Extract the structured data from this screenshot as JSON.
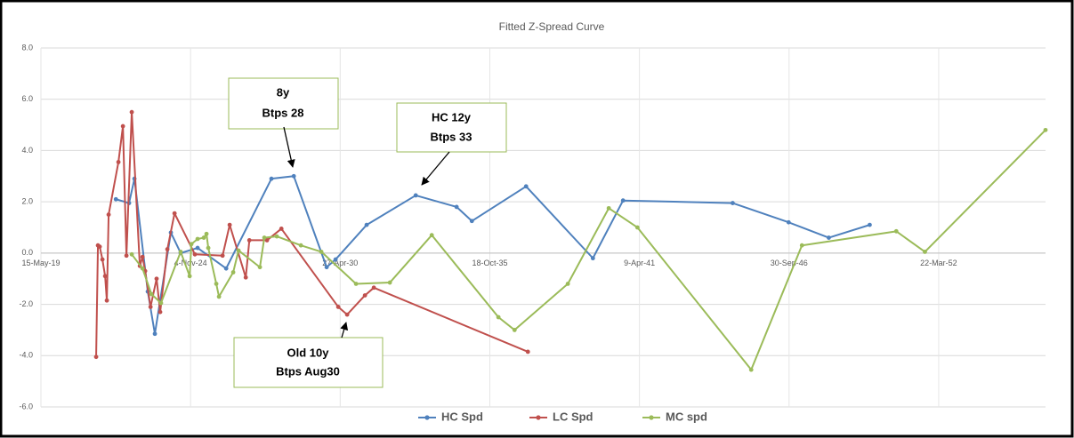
{
  "chart_data": {
    "type": "line",
    "title": "Fitted Z-Spread Curve",
    "xlim": [
      "2019-05-15",
      "2056-02-18"
    ],
    "xticks": [
      {
        "value": "2019-05-15",
        "label": "15-May-19"
      },
      {
        "value": "2024-11-04",
        "label": "4-Nov-24"
      },
      {
        "value": "2030-04-27",
        "label": "27-Apr-30"
      },
      {
        "value": "2035-10-18",
        "label": "18-Oct-35"
      },
      {
        "value": "2041-04-09",
        "label": "9-Apr-41"
      },
      {
        "value": "2046-09-30",
        "label": "30-Sep-46"
      },
      {
        "value": "2052-03-22",
        "label": "22-Mar-52"
      }
    ],
    "ylim": [
      -6,
      8
    ],
    "yticks": [
      {
        "value": 8,
        "label": "8.0"
      },
      {
        "value": 6,
        "label": "6.0"
      },
      {
        "value": 4,
        "label": "4.0"
      },
      {
        "value": 2,
        "label": "2.0"
      },
      {
        "value": 0,
        "label": "0.0"
      },
      {
        "value": -2,
        "label": "-2.0"
      },
      {
        "value": -4,
        "label": "-4.0"
      },
      {
        "value": -6,
        "label": "-6.0"
      }
    ],
    "grid": true,
    "legend": "bottom",
    "series": [
      {
        "name": "HC Spd",
        "color": "#4f81bd",
        "x": [
          "2022-02-10",
          "2022-08-05",
          "2022-10-16",
          "2023-04-12",
          "2023-07-16",
          "2024-02-15",
          "2024-06-25",
          "2025-02-06",
          "2026-02-23",
          "2027-10-21",
          "2028-08-15",
          "2029-10-28",
          "2030-02-24",
          "2031-04-16",
          "2033-01-31",
          "2034-07-31",
          "2035-02-20",
          "2037-02-14",
          "2039-07-27",
          "2040-09-02",
          "2044-09-06",
          "2046-09-24",
          "2048-03-14",
          "2049-09-12"
        ],
        "values": [
          2.1,
          1.95,
          2.9,
          -1.5,
          -3.15,
          0.8,
          0.0,
          0.2,
          -0.6,
          2.9,
          3.0,
          -0.55,
          -0.25,
          1.1,
          2.25,
          1.8,
          1.25,
          2.6,
          -0.2,
          2.05,
          1.95,
          1.2,
          0.6,
          1.1
        ]
      },
      {
        "name": "LC Spd",
        "color": "#c0504d",
        "x": [
          "2021-05-22",
          "2021-06-15",
          "2021-07-09",
          "2021-08-14",
          "2021-09-19",
          "2021-10-12",
          "2021-11-05",
          "2022-03-16",
          "2022-05-15",
          "2022-07-01",
          "2022-09-10",
          "2022-12-27",
          "2023-02-01",
          "2023-03-08",
          "2023-05-19",
          "2023-08-08",
          "2023-09-25",
          "2023-12-30",
          "2024-04-04",
          "2025-01-01",
          "2026-01-06",
          "2026-04-11",
          "2026-11-12",
          "2026-12-30",
          "2027-08-23",
          "2028-03-02",
          "2030-04-01",
          "2030-07-29",
          "2031-03-24",
          "2031-07-21",
          "2037-03-10"
        ],
        "values": [
          -4.05,
          0.3,
          0.25,
          -0.25,
          -0.9,
          -1.85,
          1.5,
          3.55,
          4.95,
          -0.1,
          5.5,
          -0.5,
          -0.15,
          -0.7,
          -2.1,
          -1.0,
          -2.3,
          0.15,
          1.55,
          -0.05,
          -0.1,
          1.1,
          -0.95,
          0.5,
          0.5,
          0.95,
          -2.1,
          -2.4,
          -1.65,
          -1.35,
          -3.85
        ]
      },
      {
        "name": "MC spd",
        "color": "#9bbb59",
        "x": [
          "2022-09-10",
          "2023-02-01",
          "2023-05-31",
          "2023-10-06",
          "2024-06-25",
          "2024-10-23",
          "2024-11-15",
          "2025-02-06",
          "2025-04-30",
          "2025-06-05",
          "2025-06-29",
          "2025-10-14",
          "2025-11-19",
          "2026-05-28",
          "2026-08-07",
          "2027-05-20",
          "2027-07-18",
          "2028-01-01",
          "2028-11-18",
          "2029-08-18",
          "2030-11-25",
          "2032-02-20",
          "2033-09-02",
          "2036-02-10",
          "2036-09-13",
          "2038-08-26",
          "2040-02-24",
          "2041-03-13",
          "2045-05-12",
          "2047-03-21",
          "2050-09-02",
          "2051-09-20",
          "2056-02-18"
        ],
        "values": [
          -0.05,
          -0.6,
          -1.6,
          -1.95,
          0.05,
          -0.9,
          0.35,
          0.55,
          0.6,
          0.75,
          0.2,
          -1.2,
          -1.7,
          -0.75,
          0.1,
          -0.55,
          0.6,
          0.65,
          0.3,
          0.05,
          -1.2,
          -1.15,
          0.7,
          -2.5,
          -3.0,
          -1.2,
          1.75,
          1.0,
          -4.55,
          0.3,
          0.85,
          0.05,
          4.8
        ]
      }
    ],
    "annotations": [
      {
        "text": [
          "8y",
          "Btps 28"
        ]
      },
      {
        "text": [
          "HC 12y",
          "Btps 33"
        ]
      },
      {
        "text": [
          "Old 10y",
          "Btps Aug30"
        ]
      }
    ]
  }
}
